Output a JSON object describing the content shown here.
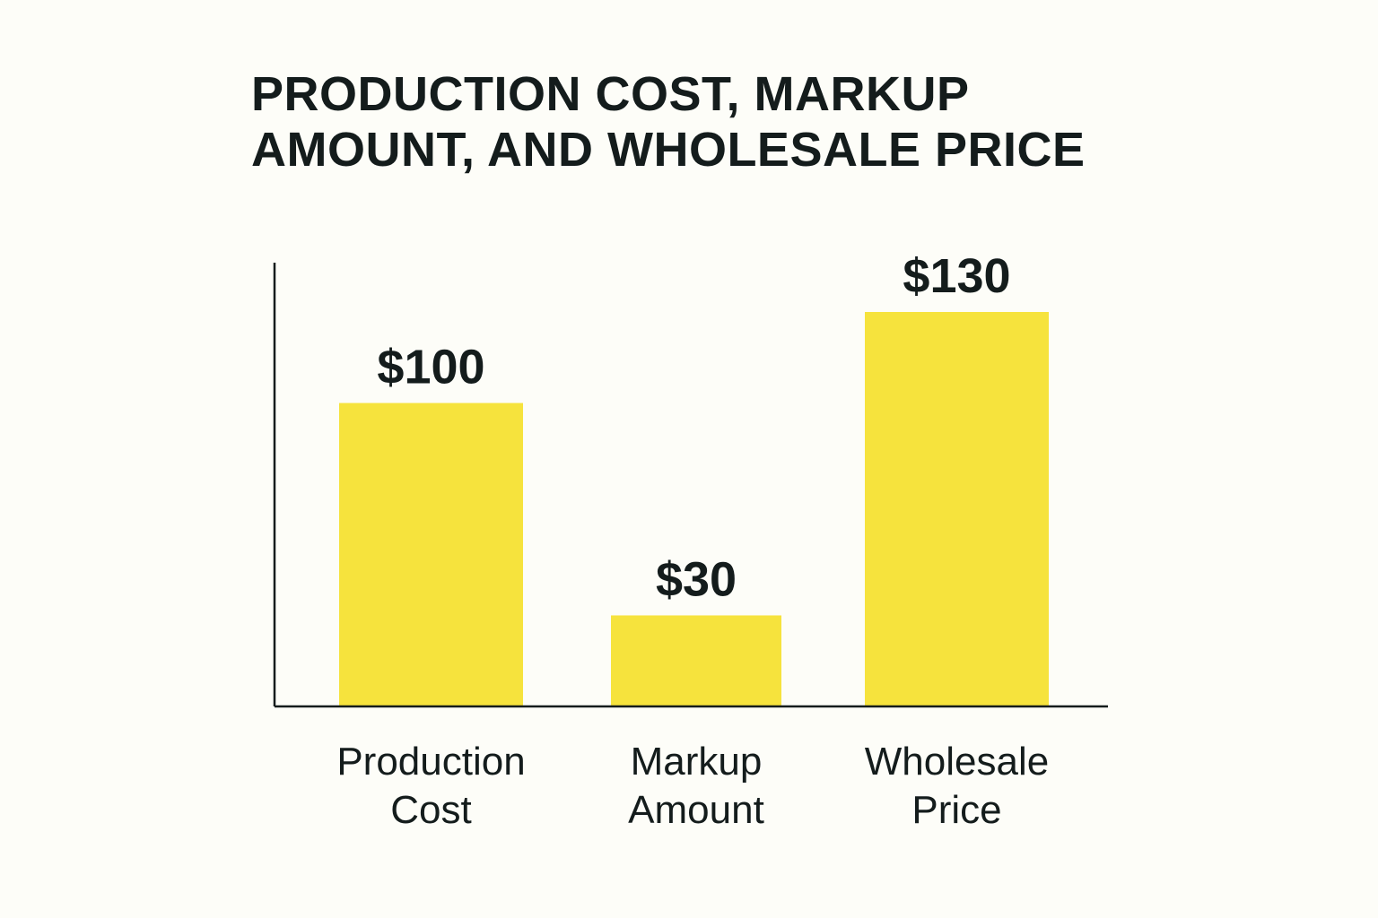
{
  "title": {
    "line1": "PRODUCTION COST, MARKUP",
    "line2": "AMOUNT, AND WHOLESALE PRICE"
  },
  "colors": {
    "background": "#fdfdf8",
    "bar": "#f6e33d",
    "text": "#141c1c",
    "axis": "#141c1c"
  },
  "chart_data": {
    "type": "bar",
    "title": "PRODUCTION COST, MARKUP AMOUNT, AND WHOLESALE PRICE",
    "categories": [
      "Production Cost",
      "Markup Amount",
      "Wholesale Price"
    ],
    "category_lines": [
      [
        "Production",
        "Cost"
      ],
      [
        "Markup",
        "Amount"
      ],
      [
        "Wholesale",
        "Price"
      ]
    ],
    "values": [
      100,
      30,
      130
    ],
    "value_labels": [
      "$100",
      "$30",
      "$130"
    ],
    "xlabel": "",
    "ylabel": "",
    "grid": false,
    "legend": "none"
  }
}
